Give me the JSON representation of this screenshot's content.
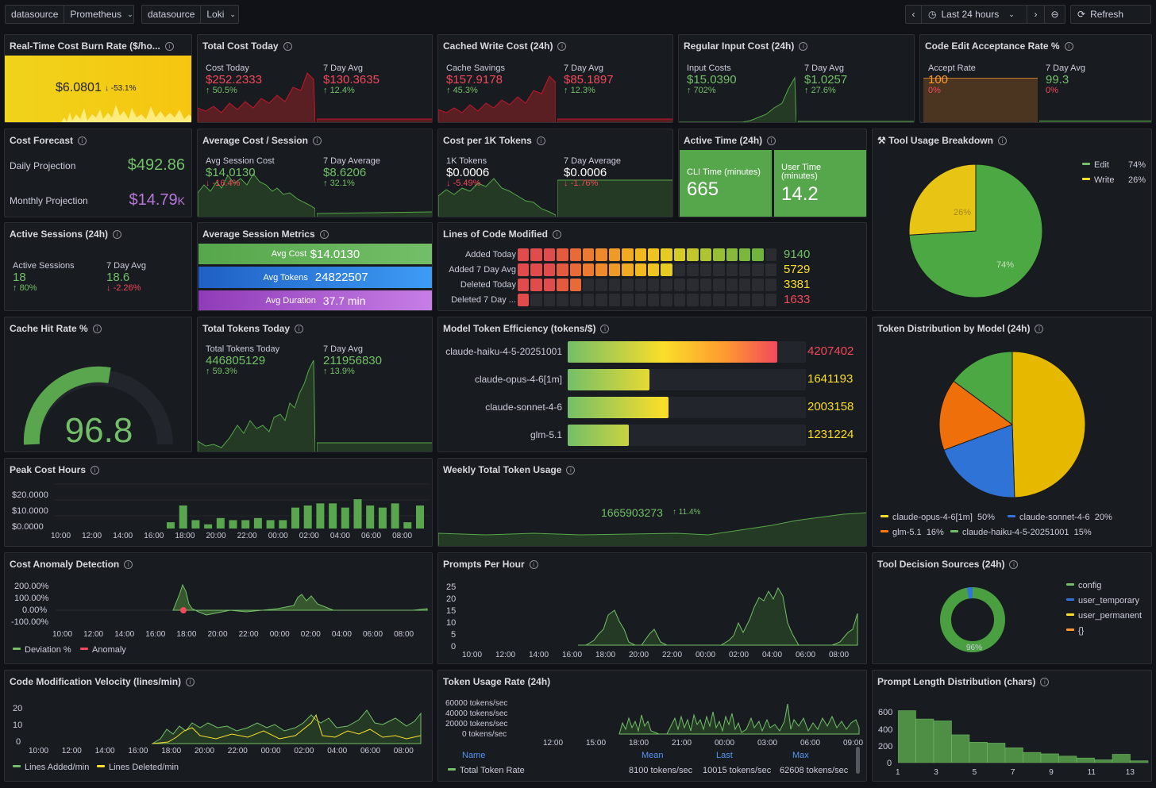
{
  "toolbar": {
    "ds1_label": "datasource",
    "ds1_value": "Prometheus",
    "ds2_label": "datasource",
    "ds2_value": "Loki",
    "time_range": "Last 24 hours",
    "refresh": "Refresh"
  },
  "burn": {
    "title": "Real-Time Cost Burn Rate ($/ho...",
    "value": "$6.0801",
    "delta": "-53.1%"
  },
  "cost_today": {
    "title": "Total Cost Today",
    "l1": "Cost Today",
    "v1": "$252.2333",
    "d1": "50.5%",
    "l2": "7 Day Avg",
    "v2": "$130.3635",
    "d2": "12.4%"
  },
  "cached": {
    "title": "Cached Write Cost (24h)",
    "l1": "Cache Savings",
    "v1": "$157.9178",
    "d1": "45.3%",
    "l2": "7 Day Avg",
    "v2": "$85.1897",
    "d2": "12.3%"
  },
  "regular": {
    "title": "Regular Input Cost (24h)",
    "l1": "Input Costs",
    "v1": "$15.0390",
    "d1": "702%",
    "l2": "7 Day Avg",
    "v2": "$1.0257",
    "d2": "27.6%"
  },
  "accept": {
    "title": "Code Edit Acceptance Rate %",
    "l1": "Accept Rate",
    "v1": "100",
    "d1": "0%",
    "l2": "7 Day Avg",
    "v2": "99.3",
    "d2": "0%"
  },
  "forecast": {
    "title": "Cost Forecast",
    "daily_label": "Daily Projection",
    "daily_value": "$492.86",
    "monthly_label": "Monthly Projection",
    "monthly_value": "$14.79",
    "monthly_unit": "K"
  },
  "avg_session": {
    "title": "Average Cost / Session",
    "l1": "Avg Session Cost",
    "v1": "$14.0130",
    "d1": "-16.4%",
    "l2": "7 Day Average",
    "v2": "$8.6206",
    "d2": "32.1%"
  },
  "per1k": {
    "title": "Cost per 1K Tokens",
    "l1": "1K Tokens",
    "v1": "$0.0006",
    "d1": "-5.49%",
    "l2": "7 Day Average",
    "v2": "$0.0006",
    "d2": "-1.76%"
  },
  "active_time": {
    "title": "Active Time (24h)",
    "l1": "CLI Time (minutes)",
    "v1": "665",
    "l2": "User Time (minutes)",
    "v2": "14.2"
  },
  "tool_usage": {
    "title": "Tool Usage Breakdown",
    "legend": [
      {
        "name": "Edit",
        "pct": "74%"
      },
      {
        "name": "Write",
        "pct": "26%"
      }
    ],
    "slice_labels": [
      "26%",
      "74%"
    ]
  },
  "sessions": {
    "title": "Active Sessions (24h)",
    "l1": "Active Sessions",
    "v1": "18",
    "d1": "80%",
    "l2": "7 Day Avg",
    "v2": "18.6",
    "d2": "-2.26%"
  },
  "session_metrics": {
    "title": "Average Session Metrics",
    "rows": [
      {
        "label": "Avg Cost",
        "value": "$14.0130"
      },
      {
        "label": "Avg Tokens",
        "value": "24822507"
      },
      {
        "label": "Avg Duration",
        "value": "37.7 min"
      }
    ]
  },
  "lines": {
    "title": "Lines of Code Modified",
    "rows": [
      {
        "label": "Added Today",
        "value": "9140",
        "fill": 0.97
      },
      {
        "label": "Added 7 Day Avg",
        "value": "5729",
        "fill": 0.6
      },
      {
        "label": "Deleted Today",
        "value": "3381",
        "fill": 0.25
      },
      {
        "label": "Deleted 7 Day ...",
        "value": "1633",
        "fill": 0.02
      }
    ]
  },
  "cache_hit": {
    "title": "Cache Hit Rate %",
    "value": "96.8"
  },
  "total_tokens": {
    "title": "Total Tokens Today",
    "l1": "Total Tokens Today",
    "v1": "446805129",
    "d1": "59.3%",
    "l2": "7 Day Avg",
    "v2": "211956830",
    "d2": "13.9%"
  },
  "efficiency": {
    "title": "Model Token Efficiency (tokens/$)",
    "rows": [
      {
        "label": "claude-haiku-4-5-20251001",
        "value": "4207402",
        "fill": 1.0
      },
      {
        "label": "claude-opus-4-6[1m]",
        "value": "1641193",
        "fill": 0.39
      },
      {
        "label": "claude-sonnet-4-6",
        "value": "2003158",
        "fill": 0.48
      },
      {
        "label": "glm-5.1",
        "value": "1231224",
        "fill": 0.29
      }
    ]
  },
  "token_dist": {
    "title": "Token Distribution by Model (24h)",
    "legend": [
      {
        "name": "claude-opus-4-6[1m]",
        "pct": "50%"
      },
      {
        "name": "claude-sonnet-4-6",
        "pct": "20%"
      },
      {
        "name": "glm-5.1",
        "pct": "16%"
      },
      {
        "name": "claude-haiku-4-5-20251001",
        "pct": "15%"
      }
    ]
  },
  "peak": {
    "title": "Peak Cost Hours",
    "yticks": [
      "$20.0000",
      "$10.0000",
      "$0.0000"
    ]
  },
  "weekly": {
    "title": "Weekly Total Token Usage",
    "value": "1665903273",
    "delta": "11.4%"
  },
  "anomaly": {
    "title": "Cost Anomaly Detection",
    "yticks": [
      "200.00%",
      "100.00%",
      "0.00%",
      "-100.00%"
    ],
    "legend": [
      "Deviation %",
      "Anomaly"
    ]
  },
  "prompts": {
    "title": "Prompts Per Hour",
    "yticks": [
      "25",
      "20",
      "15",
      "10",
      "5",
      "0"
    ]
  },
  "decision": {
    "title": "Tool Decision Sources (24h)",
    "legend": [
      "config",
      "user_temporary",
      "user_permanent",
      "{}"
    ],
    "pct": "96%"
  },
  "velocity": {
    "title": "Code Modification Velocity (lines/min)",
    "yticks": [
      "20",
      "10",
      "0"
    ],
    "legend": [
      "Lines Added/min",
      "Lines Deleted/min"
    ]
  },
  "rate": {
    "title": "Token Usage Rate (24h)",
    "yticks": [
      "60000 tokens/sec",
      "40000 tokens/sec",
      "20000 tokens/sec",
      "0 tokens/sec"
    ],
    "xticks": [
      "12:00",
      "15:00",
      "18:00",
      "21:00",
      "00:00",
      "03:00",
      "06:00",
      "09:00"
    ],
    "hdr": [
      "Name",
      "Mean",
      "Last",
      "Max"
    ],
    "row": [
      "Total Token Rate",
      "8100 tokens/sec",
      "10015 tokens/sec",
      "62608 tokens/sec"
    ]
  },
  "prompt_len": {
    "title": "Prompt Length Distribution (chars)",
    "yticks": [
      "600",
      "400",
      "200",
      "0"
    ],
    "xticks": [
      "1",
      "3",
      "5",
      "7",
      "9",
      "11",
      "13"
    ]
  },
  "time_axis": [
    "10:00",
    "12:00",
    "14:00",
    "16:00",
    "18:00",
    "20:00",
    "22:00",
    "00:00",
    "02:00",
    "04:00",
    "06:00",
    "08:00"
  ],
  "chart_data": [
    {
      "type": "bar",
      "title": "Peak Cost Hours",
      "ylim": [
        0,
        22
      ],
      "values": [
        3,
        11,
        4,
        2,
        5,
        4,
        4,
        5,
        4,
        4,
        10,
        11,
        12,
        12,
        10,
        14,
        11,
        10,
        12,
        3,
        11
      ]
    },
    {
      "type": "pie",
      "title": "Tool Usage Breakdown",
      "categories": [
        "Edit",
        "Write"
      ],
      "values": [
        74,
        26
      ]
    },
    {
      "type": "pie",
      "title": "Token Distribution by Model (24h)",
      "categories": [
        "claude-opus-4-6[1m]",
        "claude-sonnet-4-6",
        "glm-5.1",
        "claude-haiku-4-5-20251001"
      ],
      "values": [
        50,
        20,
        16,
        15
      ]
    },
    {
      "type": "bar",
      "title": "Prompt Length Distribution (chars)",
      "ylim": [
        0,
        650
      ],
      "values": [
        560,
        470,
        450,
        300,
        220,
        210,
        160,
        110,
        95,
        70,
        50,
        30,
        90,
        20
      ]
    }
  ],
  "colors": {
    "green": "#73bf69",
    "red": "#f2495c",
    "yellow": "#fade2a",
    "blue": "#3274d9",
    "orange": "#ff780a",
    "purple": "#b877d9"
  }
}
